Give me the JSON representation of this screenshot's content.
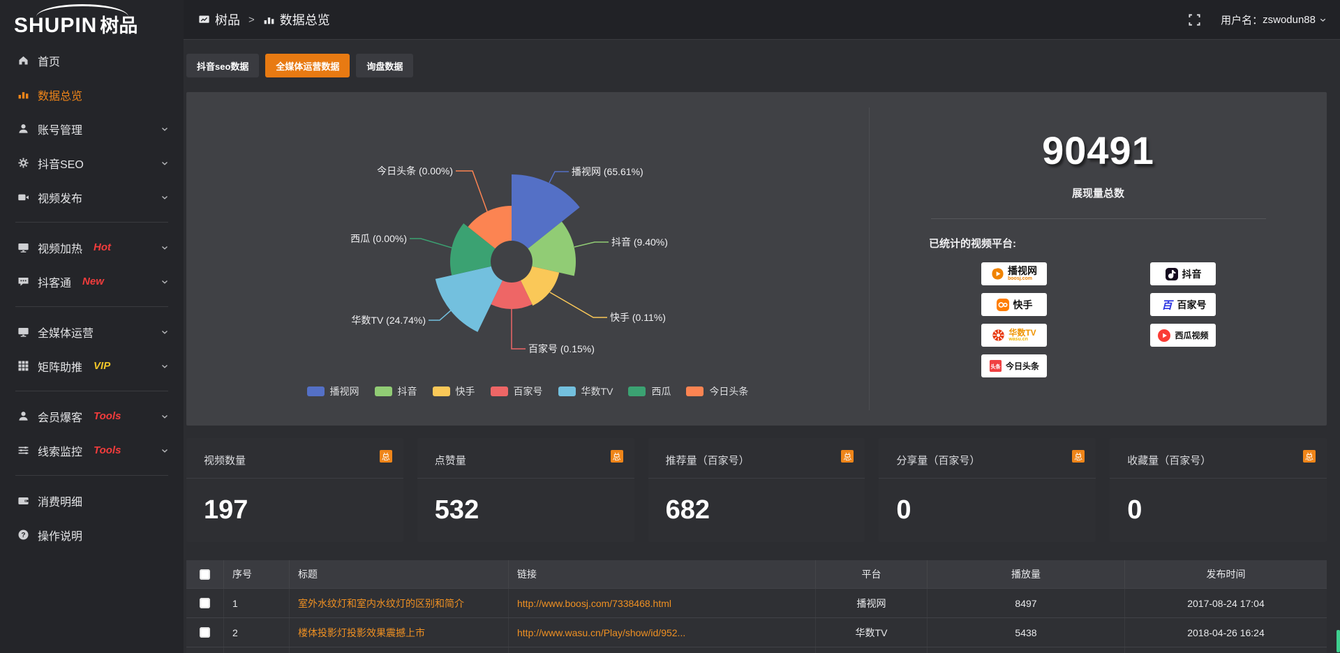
{
  "header": {
    "logo_primary": "SHUPIN",
    "logo_secondary": "树品",
    "breadcrumb": [
      {
        "label": "树品",
        "icon": "screen"
      },
      {
        "label": "数据总览",
        "icon": "chart-bar"
      }
    ],
    "breadcrumb_separator": ">",
    "username_label": "用户名：",
    "username": "zswodun88"
  },
  "sidebar": {
    "items": [
      {
        "label": "首页",
        "icon": "home"
      },
      {
        "label": "数据总览",
        "icon": "chart-bar",
        "active": true
      },
      {
        "label": "账号管理",
        "icon": "user",
        "chevron": true
      },
      {
        "label": "抖音SEO",
        "icon": "gear",
        "chevron": true
      },
      {
        "label": "视频发布",
        "icon": "video",
        "chevron": true
      },
      {
        "divider": true
      },
      {
        "label": "视频加热",
        "icon": "monitor",
        "tag": "Hot",
        "tag_color": "#f23c3c",
        "chevron": true
      },
      {
        "label": "抖客通",
        "icon": "chat",
        "tag": "New",
        "tag_color": "#f23c3c",
        "chevron": true
      },
      {
        "divider": true
      },
      {
        "label": "全媒体运营",
        "icon": "monitor",
        "chevron": true
      },
      {
        "label": "矩阵助推",
        "icon": "grid",
        "tag": "VIP",
        "tag_color": "#f0c529",
        "chevron": true
      },
      {
        "divider": true
      },
      {
        "label": "会员爆客",
        "icon": "user",
        "tag": "Tools",
        "tag_color": "#f23c3c",
        "chevron": true
      },
      {
        "label": "线索监控",
        "icon": "sliders",
        "tag": "Tools",
        "tag_color": "#f23c3c",
        "chevron": true
      },
      {
        "divider": true
      },
      {
        "label": "消费明细",
        "icon": "wallet"
      },
      {
        "label": "操作说明",
        "icon": "question"
      }
    ]
  },
  "tabs": {
    "items": [
      {
        "label": "抖音seo数据",
        "active": false
      },
      {
        "label": "全媒体运营数据",
        "active": true
      },
      {
        "label": "询盘数据",
        "active": false
      }
    ]
  },
  "chart_data": {
    "type": "pie",
    "variant": "nightingale-rose",
    "legend_position": "bottom",
    "slices": [
      {
        "name": "播视网",
        "pct": "65.61",
        "label": "播视网 (65.61%)",
        "color": "#5470c6"
      },
      {
        "name": "抖音",
        "pct": "9.40",
        "label": "抖音 (9.40%)",
        "color": "#91cc75"
      },
      {
        "name": "快手",
        "pct": "0.11",
        "label": "快手 (0.11%)",
        "color": "#fac858"
      },
      {
        "name": "百家号",
        "pct": "0.15",
        "label": "百家号 (0.15%)",
        "color": "#ee6666"
      },
      {
        "name": "华数TV",
        "pct": "24.74",
        "label": "华数TV (24.74%)",
        "color": "#73c0de"
      },
      {
        "name": "西瓜",
        "pct": "0.00",
        "label": "西瓜 (0.00%)",
        "color": "#3ba272"
      },
      {
        "name": "今日头条",
        "pct": "0.00",
        "label": "今日头条 (0.00%)",
        "color": "#fc8452"
      }
    ]
  },
  "overview": {
    "total": "90491",
    "total_label": "展现量总数",
    "platforms_title": "已统计的视频平台:",
    "platforms_left": [
      {
        "name": "播视网",
        "sub": "boosj.com",
        "logo": "boosj"
      },
      {
        "name": "快手",
        "logo": "kuaishou"
      },
      {
        "name": "华数TV",
        "sub": "wasu.cn",
        "logo": "wasu"
      },
      {
        "name": "今日头条",
        "logo": "toutiao"
      }
    ],
    "platforms_right": [
      {
        "name": "抖音",
        "logo": "douyin"
      },
      {
        "name": "百家号",
        "logo": "baijia"
      },
      {
        "name": "西瓜视频",
        "logo": "xigua"
      }
    ]
  },
  "cards": {
    "badge": "总",
    "items": [
      {
        "title": "视频数量",
        "value": "197"
      },
      {
        "title": "点赞量",
        "value": "532"
      },
      {
        "title": "推荐量（百家号）",
        "value": "682"
      },
      {
        "title": "分享量（百家号）",
        "value": "0"
      },
      {
        "title": "收藏量（百家号）",
        "value": "0"
      }
    ]
  },
  "table": {
    "headers": [
      "序号",
      "标题",
      "链接",
      "平台",
      "播放量",
      "发布时间"
    ],
    "rows": [
      {
        "no": "1",
        "title": "室外水纹灯和室内水纹灯的区别和简介",
        "link": "http://www.boosj.com/7338468.html",
        "platform": "播视网",
        "plays": "8497",
        "time": "2017-08-24 17:04"
      },
      {
        "no": "2",
        "title": "楼体投影灯投影效果震撼上市",
        "link": "http://www.wasu.cn/Play/show/id/952...",
        "platform": "华数TV",
        "plays": "5438",
        "time": "2018-04-26 16:24"
      }
    ]
  }
}
